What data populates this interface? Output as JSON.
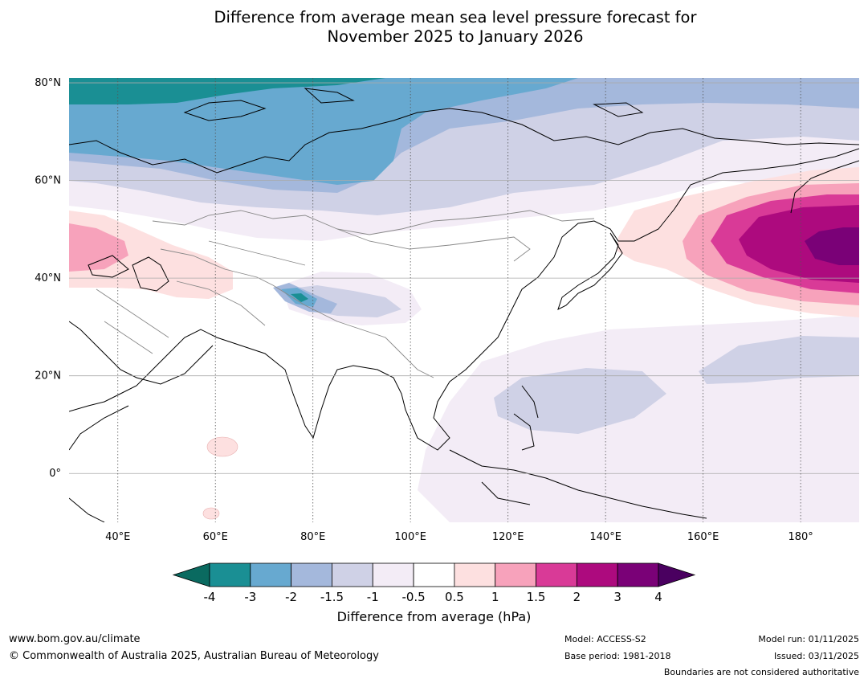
{
  "title": {
    "line1": "Difference from average mean sea level pressure forecast for",
    "line2": "November 2025 to January 2026"
  },
  "map": {
    "lon_range": [
      30,
      192
    ],
    "lat_range": [
      -10,
      81
    ],
    "lat_ticks": [
      {
        "value": 80,
        "label": "80°N"
      },
      {
        "value": 60,
        "label": "60°N"
      },
      {
        "value": 40,
        "label": "40°N"
      },
      {
        "value": 20,
        "label": "20°N"
      },
      {
        "value": 0,
        "label": "0°"
      }
    ],
    "lon_ticks": [
      {
        "value": 40,
        "label": "40°E"
      },
      {
        "value": 60,
        "label": "60°E"
      },
      {
        "value": 80,
        "label": "80°E"
      },
      {
        "value": 100,
        "label": "100°E"
      },
      {
        "value": 120,
        "label": "120°E"
      },
      {
        "value": 140,
        "label": "140°E"
      },
      {
        "value": 160,
        "label": "160°E"
      },
      {
        "value": 180,
        "label": "180°"
      }
    ]
  },
  "colorbar": {
    "label": "Difference from average (hPa)",
    "ticks": [
      "-4",
      "-3",
      "-2",
      "-1.5",
      "-1",
      "-0.5",
      "0.5",
      "1",
      "1.5",
      "2",
      "3",
      "4"
    ],
    "colors": [
      "#1a8f94",
      "#67a9d0",
      "#a4b8dc",
      "#cfd1e6",
      "#f3ecf6",
      "#ffffff",
      "#fde0e0",
      "#f7a2bb",
      "#d93a97",
      "#ad0a7e",
      "#7a0177"
    ],
    "under_color": "#0a6a60",
    "over_color": "#4a0060"
  },
  "footer": {
    "url": "www.bom.gov.au/climate",
    "copyright": "© Commonwealth of Australia 2025, Australian Bureau of Meteorology",
    "model": "Model: ACCESS-S2",
    "base_period": "Base period: 1981-2018",
    "model_run": "Model run: 01/11/2025",
    "issued": "Issued: 03/11/2025",
    "disclaimer": "Boundaries are not considered authoritative"
  }
}
